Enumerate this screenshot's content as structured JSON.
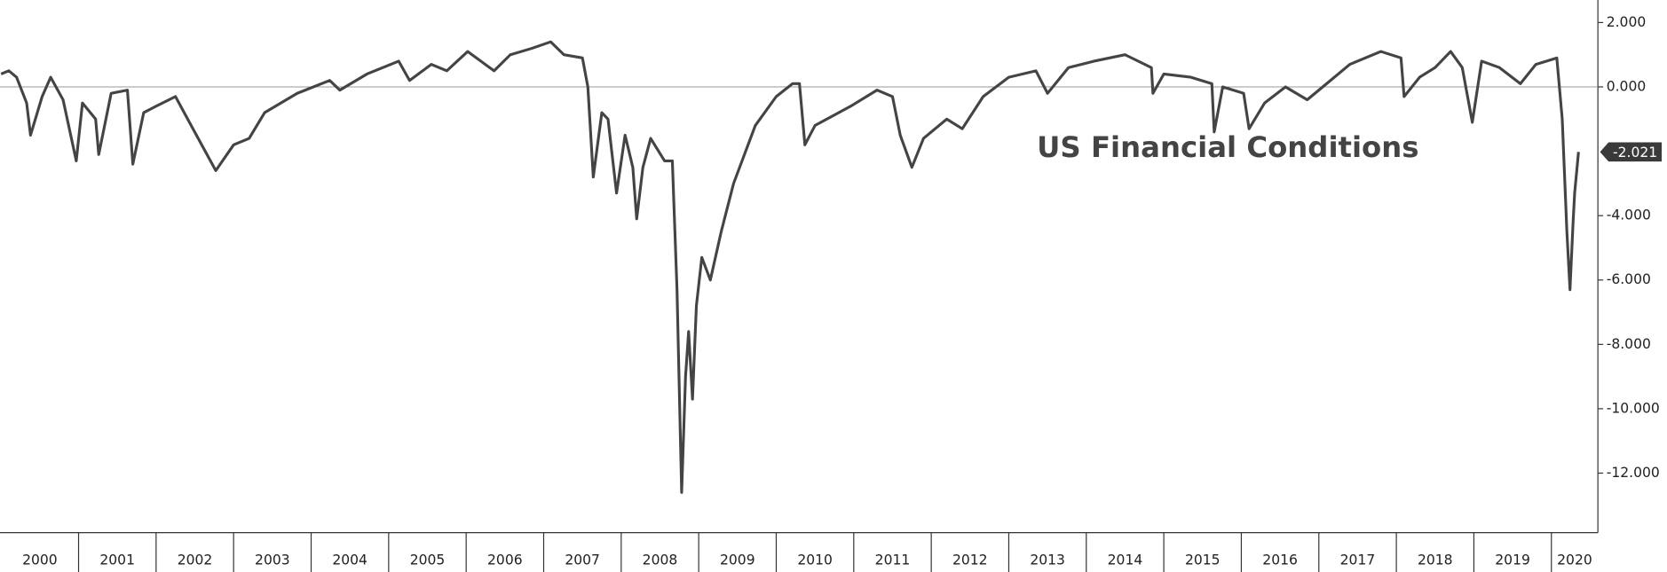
{
  "chart_data": {
    "type": "line",
    "title": "US Financial Conditions",
    "xlim": [
      2000,
      2020.6
    ],
    "xticks": [
      2000,
      2001,
      2002,
      2003,
      2004,
      2005,
      2006,
      2007,
      2008,
      2009,
      2010,
      2011,
      2012,
      2013,
      2014,
      2015,
      2016,
      2017,
      2018,
      2019,
      2020
    ],
    "ylim": [
      -13.85,
      2.7
    ],
    "yticks": [
      {
        "value": 2,
        "label": "2.000"
      },
      {
        "value": 0,
        "label": "0.000"
      },
      {
        "value": -4,
        "label": "-4.000"
      },
      {
        "value": -6,
        "label": "-6.000"
      },
      {
        "value": -8,
        "label": "-8.000"
      },
      {
        "value": -10,
        "label": "-10.000"
      },
      {
        "value": -12,
        "label": "-12.000"
      }
    ],
    "zero_line": true,
    "last_value": {
      "value": -2.021,
      "label": "-2.021"
    },
    "series": [
      {
        "name": "US Financial Conditions",
        "color": "#444444",
        "x": [
          2000.0,
          2000.1,
          2000.2,
          2000.33,
          2000.38,
          2000.53,
          2000.64,
          2000.8,
          2000.97,
          2001.05,
          2001.22,
          2001.26,
          2001.42,
          2001.63,
          2001.7,
          2001.84,
          2002.0,
          2002.25,
          2002.52,
          2002.77,
          2003.0,
          2003.2,
          2003.4,
          2003.82,
          2004.24,
          2004.37,
          2004.72,
          2005.13,
          2005.27,
          2005.55,
          2005.75,
          2006.02,
          2006.36,
          2006.57,
          2006.85,
          2007.09,
          2007.26,
          2007.5,
          2007.57,
          2007.64,
          2007.75,
          2007.83,
          2007.94,
          2008.05,
          2008.15,
          2008.2,
          2008.28,
          2008.38,
          2008.56,
          2008.66,
          2008.72,
          2008.78,
          2008.83,
          2008.87,
          2008.92,
          2008.97,
          2009.04,
          2009.15,
          2009.29,
          2009.45,
          2009.73,
          2010.0,
          2010.21,
          2010.3,
          2010.37,
          2010.5,
          2010.96,
          2011.3,
          2011.5,
          2011.6,
          2011.75,
          2011.9,
          2012.2,
          2012.4,
          2012.67,
          2013.0,
          2013.35,
          2013.5,
          2013.77,
          2014.1,
          2014.5,
          2014.84,
          2014.86,
          2015.0,
          2015.35,
          2015.62,
          2015.65,
          2015.76,
          2016.03,
          2016.1,
          2016.3,
          2016.57,
          2016.85,
          2017.1,
          2017.4,
          2017.8,
          2018.06,
          2018.1,
          2018.3,
          2018.5,
          2018.7,
          2018.85,
          2018.98,
          2019.1,
          2019.33,
          2019.6,
          2019.8,
          2020.07,
          2020.14,
          2020.2,
          2020.24,
          2020.28,
          2020.3,
          2020.35
        ],
        "values": [
          0.4,
          0.5,
          0.3,
          -0.5,
          -1.5,
          -0.3,
          0.3,
          -0.4,
          -2.3,
          -0.5,
          -1.0,
          -2.1,
          -0.2,
          -0.1,
          -2.4,
          -0.8,
          -0.6,
          -0.3,
          -1.5,
          -2.6,
          -1.8,
          -1.6,
          -0.8,
          -0.2,
          0.2,
          -0.1,
          0.4,
          0.8,
          0.2,
          0.7,
          0.5,
          1.1,
          0.5,
          1.0,
          1.2,
          1.4,
          1.0,
          0.9,
          0.0,
          -2.8,
          -0.8,
          -1.0,
          -3.3,
          -1.5,
          -2.5,
          -4.1,
          -2.5,
          -1.6,
          -2.3,
          -2.3,
          -6.3,
          -12.6,
          -9.0,
          -7.6,
          -9.7,
          -6.8,
          -5.3,
          -6.0,
          -4.5,
          -3.0,
          -1.2,
          -0.3,
          0.1,
          0.1,
          -1.8,
          -1.2,
          -0.6,
          -0.1,
          -0.3,
          -1.5,
          -2.5,
          -1.6,
          -1.0,
          -1.3,
          -0.3,
          0.3,
          0.5,
          -0.2,
          0.6,
          0.8,
          1.0,
          0.6,
          -0.2,
          0.4,
          0.3,
          0.1,
          -1.4,
          0.0,
          -0.2,
          -1.3,
          -0.5,
          0.0,
          -0.4,
          0.1,
          0.7,
          1.1,
          0.9,
          -0.3,
          0.3,
          0.6,
          1.1,
          0.6,
          -1.1,
          0.8,
          0.6,
          0.1,
          0.7,
          0.9,
          -1.0,
          -4.5,
          -6.3,
          -4.2,
          -3.3,
          -2.021
        ]
      }
    ]
  }
}
